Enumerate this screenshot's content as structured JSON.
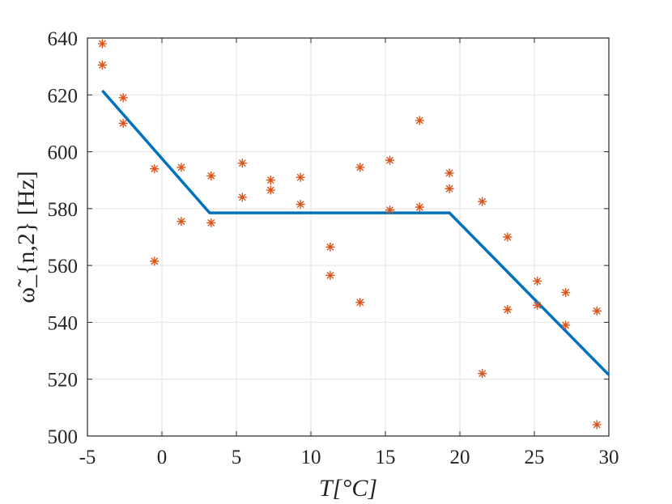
{
  "chart_data": {
    "type": "scatter",
    "title": "",
    "xlabel": "T[°C]",
    "ylabel": "ω̃_{n,2} [Hz]",
    "xlim": [
      -5,
      30
    ],
    "ylim": [
      500,
      640
    ],
    "xticks": [
      -5,
      0,
      5,
      10,
      15,
      20,
      25,
      30
    ],
    "yticks": [
      500,
      520,
      540,
      560,
      580,
      600,
      620,
      640
    ],
    "grid": true,
    "legend": "none",
    "series": [
      {
        "type": "scatter",
        "marker": "asterisk",
        "color": "#d95319",
        "points": [
          [
            -4,
            638
          ],
          [
            -4,
            630.5
          ],
          [
            -2.6,
            619
          ],
          [
            -2.6,
            610
          ],
          [
            -0.5,
            594
          ],
          [
            -0.5,
            561.5
          ],
          [
            1.3,
            594.5
          ],
          [
            1.3,
            575.5
          ],
          [
            3.3,
            591.5
          ],
          [
            3.3,
            575
          ],
          [
            5.4,
            596
          ],
          [
            5.4,
            584
          ],
          [
            7.3,
            590
          ],
          [
            7.3,
            586.5
          ],
          [
            9.3,
            591
          ],
          [
            9.3,
            581.5
          ],
          [
            11.3,
            566.5
          ],
          [
            11.3,
            556.5
          ],
          [
            13.3,
            594.5
          ],
          [
            13.3,
            547
          ],
          [
            15.3,
            597
          ],
          [
            15.3,
            579.5
          ],
          [
            17.3,
            611
          ],
          [
            17.3,
            580.5
          ],
          [
            19.3,
            592.5
          ],
          [
            19.3,
            587
          ],
          [
            21.5,
            582.5
          ],
          [
            21.5,
            522
          ],
          [
            23.2,
            570
          ],
          [
            23.2,
            544.5
          ],
          [
            25.2,
            554.5
          ],
          [
            25.2,
            546
          ],
          [
            27.1,
            550.5
          ],
          [
            27.1,
            539
          ],
          [
            29.2,
            544
          ],
          [
            29.2,
            504
          ]
        ]
      },
      {
        "type": "line",
        "color": "#0072bd",
        "points": [
          [
            -4,
            621.5
          ],
          [
            3.2,
            578.5
          ],
          [
            19.3,
            578.5
          ],
          [
            30,
            521.5
          ]
        ]
      }
    ]
  }
}
